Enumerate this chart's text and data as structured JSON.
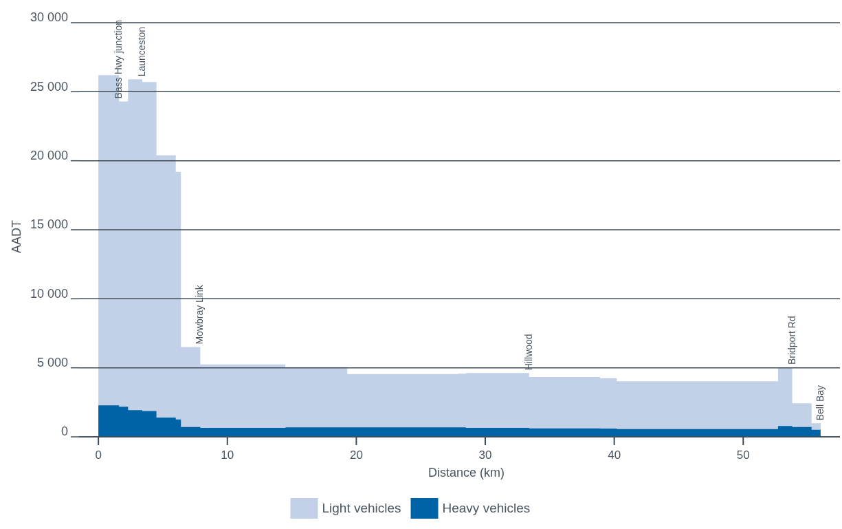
{
  "chart_data": {
    "type": "area",
    "xlabel": "Distance (km)",
    "ylabel": "AADT",
    "x": [
      0,
      1.6,
      1.6,
      2.3,
      2.3,
      3.4,
      3.4,
      4.5,
      4.5,
      6.0,
      6.0,
      6.4,
      6.4,
      7.9,
      7.9,
      14.5,
      14.5,
      19.3,
      19.3,
      27.9,
      27.9,
      28.5,
      28.5,
      33.4,
      33.4,
      38.9,
      38.9,
      40.2,
      40.2,
      52.7,
      52.7,
      53.8,
      53.8,
      55.3,
      55.3,
      56.0
    ],
    "series": [
      {
        "name": "Light vehicles",
        "color": "#c2d1e7",
        "values": [
          26200,
          26200,
          24300,
          24300,
          25900,
          25900,
          25700,
          25700,
          20400,
          20400,
          19200,
          19200,
          6500,
          6500,
          5250,
          5250,
          5050,
          5050,
          4550,
          4550,
          4570,
          4570,
          4620,
          4620,
          4340,
          4340,
          4250,
          4250,
          4020,
          4020,
          5030,
          5030,
          2430,
          2430,
          980,
          980
        ]
      },
      {
        "name": "Heavy vehicles",
        "color": "#0063a6",
        "values": [
          2280,
          2280,
          2180,
          2180,
          1930,
          1930,
          1870,
          1870,
          1400,
          1400,
          1260,
          1260,
          710,
          710,
          650,
          650,
          690,
          690,
          690,
          690,
          690,
          690,
          650,
          650,
          610,
          610,
          600,
          600,
          560,
          560,
          790,
          790,
          710,
          710,
          510,
          510
        ]
      }
    ],
    "xlim": [
      -1.5,
      57.5
    ],
    "xticks": [
      0,
      10,
      20,
      30,
      40,
      50
    ],
    "ylim": [
      0,
      30000
    ],
    "yticks": [
      {
        "value": 0,
        "label": "0"
      },
      {
        "value": 5000,
        "label": "5 000"
      },
      {
        "value": 10000,
        "label": "10 000"
      },
      {
        "value": 15000,
        "label": "15 000"
      },
      {
        "value": 20000,
        "label": "20 000"
      },
      {
        "value": 25000,
        "label": "25 000"
      },
      {
        "value": 30000,
        "label": "30 000"
      }
    ],
    "grid": "y",
    "legend": "bottom",
    "annotations": [
      {
        "text": "Bass Hwy junction",
        "x": 1.6,
        "y": 24300
      },
      {
        "text": "Launceston",
        "x": 3.4,
        "y": 25900
      },
      {
        "text": "Mowbray Link",
        "x": 7.9,
        "y": 6500
      },
      {
        "text": "Hillwood",
        "x": 33.4,
        "y": 4620
      },
      {
        "text": "Bridport Rd",
        "x": 53.8,
        "y": 5030
      },
      {
        "text": "Bell Bay",
        "x": 56.0,
        "y": 980
      }
    ]
  }
}
